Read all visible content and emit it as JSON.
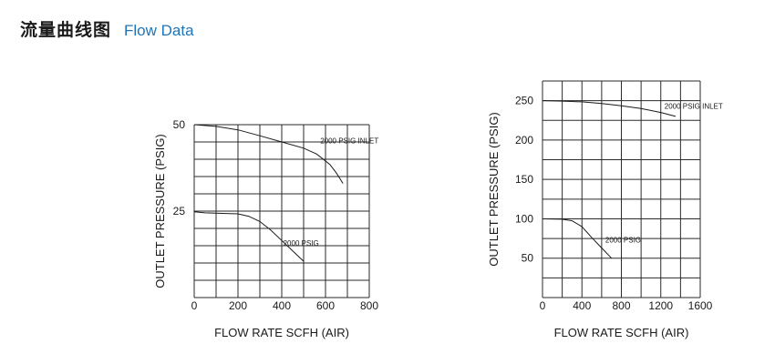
{
  "header": {
    "title_cn": "流量曲线图",
    "title_en": "Flow Data"
  },
  "colors": {
    "title_accent": "#1f74b8",
    "ink": "#1a1a1a",
    "grid": "#2a2a2a"
  },
  "chart_data": [
    {
      "type": "line",
      "xlabel": "FLOW RATE  SCFH (AIR)",
      "ylabel": "OUTLET  PRESSURE (PSIG)",
      "xlim": [
        0,
        800
      ],
      "ylim": [
        0,
        50
      ],
      "x_ticks": [
        0,
        200,
        400,
        600,
        800
      ],
      "y_ticks": [
        25,
        50
      ],
      "x_grid_step": 100,
      "y_grid_step": 5,
      "grid": true,
      "series": [
        {
          "name": "2000  PSIG INLET",
          "x": [
            0,
            100,
            200,
            300,
            400,
            500,
            560,
            620,
            650,
            680
          ],
          "y": [
            50,
            49.5,
            48.5,
            46.8,
            45,
            43.2,
            41.5,
            38.5,
            36,
            33
          ]
        },
        {
          "name": "2000  PSIG",
          "x": [
            0,
            50,
            100,
            200,
            250,
            300,
            350,
            400,
            450,
            500
          ],
          "y": [
            24.8,
            24.5,
            24.4,
            24.2,
            23.5,
            22,
            19.5,
            16.5,
            13.5,
            10.5
          ]
        }
      ]
    },
    {
      "type": "line",
      "xlabel": "FLOW RATE  SCFH (AIR)",
      "ylabel": "OUTLET  PRESSURE (PSIG)",
      "xlim": [
        0,
        1600
      ],
      "ylim": [
        0,
        275
      ],
      "x_ticks": [
        0,
        400,
        800,
        1200,
        1600
      ],
      "y_ticks": [
        50,
        100,
        150,
        200,
        250
      ],
      "x_grid_step": 200,
      "y_grid_step": 25,
      "grid": true,
      "series": [
        {
          "name": "2000  PSIG INLET",
          "x": [
            0,
            200,
            400,
            600,
            800,
            1000,
            1200,
            1350
          ],
          "y": [
            250,
            249.5,
            248.5,
            246.5,
            243.5,
            240,
            235,
            230
          ]
        },
        {
          "name": "2000  PSIG",
          "x": [
            0,
            200,
            300,
            400,
            500,
            600,
            700
          ],
          "y": [
            100,
            99.5,
            97.5,
            90,
            76,
            63,
            50
          ]
        }
      ]
    }
  ]
}
